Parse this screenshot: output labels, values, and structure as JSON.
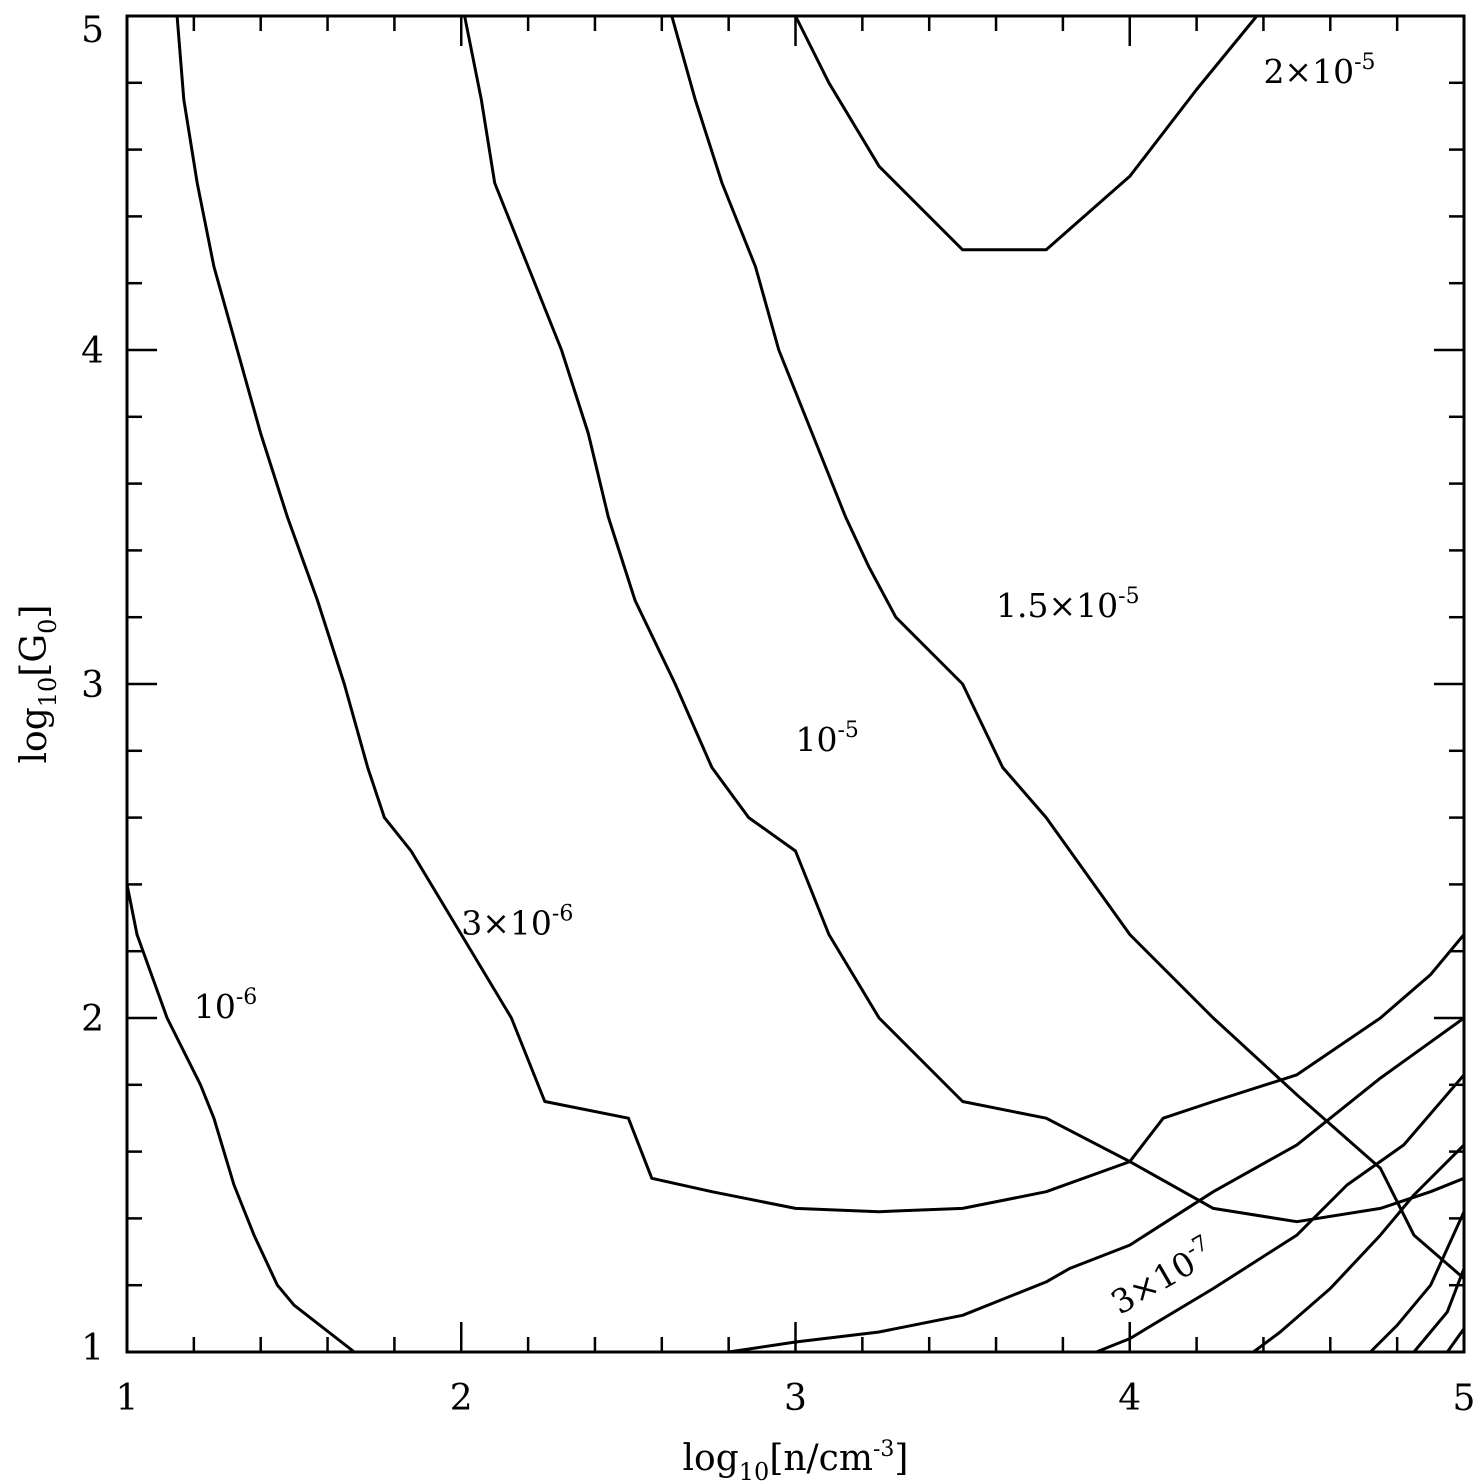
{
  "chart_data": {
    "type": "line",
    "title": "",
    "xlabel": "log10[n/cm-3]",
    "ylabel": "log10[G0]",
    "x_axis_label": {
      "base": "log",
      "sub": "10",
      "bracket_text": "[n/cm",
      "sup": "-3",
      "close": "]"
    },
    "y_axis_label": {
      "base": "log",
      "sub": "10",
      "bracket_text": "[G",
      "bracket_sub": "0",
      "close": "]"
    },
    "xlim": [
      1,
      5
    ],
    "ylim": [
      1,
      5
    ],
    "x_major_ticks": [
      "1",
      "2",
      "3",
      "4",
      "5"
    ],
    "y_major_ticks": [
      "1",
      "2",
      "3",
      "4",
      "5"
    ],
    "minor_tick_step": 0.2,
    "grid": false,
    "legend": "none",
    "line_color": "#000000",
    "series": [
      {
        "name": "10-6",
        "x": [
          1.0,
          1.03,
          1.12,
          1.22,
          1.26,
          1.32,
          1.38,
          1.45,
          1.5,
          1.68
        ],
        "y": [
          2.4,
          2.25,
          2.0,
          1.8,
          1.7,
          1.5,
          1.35,
          1.2,
          1.14,
          1.0
        ]
      },
      {
        "name": "3x10-6",
        "x": [
          1.15,
          1.17,
          1.21,
          1.26,
          1.33,
          1.4,
          1.48,
          1.57,
          1.65,
          1.72,
          1.77,
          1.85,
          2.0,
          2.15,
          2.25,
          2.5,
          2.57,
          2.75,
          3.0,
          3.25,
          3.5,
          3.75,
          4.0,
          4.1,
          4.25,
          4.5,
          4.75,
          4.9,
          5.0
        ],
        "y": [
          5.0,
          4.75,
          4.5,
          4.25,
          4.0,
          3.75,
          3.5,
          3.25,
          3.0,
          2.75,
          2.6,
          2.5,
          2.25,
          2.0,
          1.75,
          1.7,
          1.52,
          1.48,
          1.43,
          1.42,
          1.43,
          1.48,
          1.57,
          1.7,
          1.75,
          1.83,
          2.0,
          2.13,
          2.25
        ]
      },
      {
        "name": "10-5",
        "x": [
          2.01,
          2.06,
          2.1,
          2.2,
          2.3,
          2.38,
          2.44,
          2.52,
          2.64,
          2.75,
          2.86,
          3.0,
          3.1,
          3.25,
          3.5,
          3.75,
          4.0,
          4.25,
          4.5,
          4.75,
          4.9,
          5.0
        ],
        "y": [
          5.0,
          4.75,
          4.5,
          4.25,
          4.0,
          3.75,
          3.5,
          3.25,
          3.0,
          2.75,
          2.6,
          2.5,
          2.25,
          2.0,
          1.75,
          1.7,
          1.57,
          1.43,
          1.39,
          1.43,
          1.48,
          1.52
        ]
      },
      {
        "name": "1.5x10-5",
        "x": [
          2.63,
          2.7,
          2.78,
          2.88,
          2.95,
          3.05,
          3.15,
          3.22,
          3.3,
          3.5,
          3.62,
          3.75,
          4.0,
          4.25,
          4.5,
          4.75,
          4.85,
          5.0
        ],
        "y": [
          5.0,
          4.75,
          4.5,
          4.25,
          4.0,
          3.75,
          3.5,
          3.35,
          3.2,
          3.0,
          2.75,
          2.6,
          2.25,
          2.0,
          1.77,
          1.55,
          1.35,
          1.22
        ]
      },
      {
        "name": "2x10-5",
        "x": [
          3.0,
          3.1,
          3.25,
          3.5,
          3.75,
          4.0,
          4.2,
          4.38
        ],
        "y": [
          5.0,
          4.8,
          4.55,
          4.3,
          4.3,
          4.52,
          4.78,
          5.0
        ]
      },
      {
        "name": "3x10-7",
        "x": [
          2.8,
          3.0,
          3.25,
          3.5,
          3.75,
          3.82,
          4.0,
          4.25,
          4.5,
          4.75,
          5.0
        ],
        "y": [
          1.0,
          1.03,
          1.06,
          1.11,
          1.21,
          1.25,
          1.32,
          1.48,
          1.62,
          1.82,
          2.0
        ]
      },
      {
        "name": "",
        "x": [
          3.9,
          4.0,
          4.25,
          4.5,
          4.65,
          4.82,
          5.0
        ],
        "y": [
          1.0,
          1.04,
          1.19,
          1.35,
          1.5,
          1.62,
          1.83
        ]
      },
      {
        "name": "",
        "x": [
          4.37,
          4.45,
          4.6,
          4.75,
          4.85,
          5.0
        ],
        "y": [
          1.0,
          1.06,
          1.19,
          1.35,
          1.47,
          1.62
        ]
      },
      {
        "name": "",
        "x": [
          4.72,
          4.8,
          4.9,
          5.0
        ],
        "y": [
          1.0,
          1.08,
          1.2,
          1.42
        ]
      },
      {
        "name": "",
        "x": [
          4.85,
          4.95,
          5.0
        ],
        "y": [
          1.0,
          1.12,
          1.25
        ]
      },
      {
        "name": "",
        "x": [
          4.95,
          5.0
        ],
        "y": [
          1.0,
          1.07
        ]
      }
    ],
    "annotations": [
      {
        "text": "10",
        "exp": "-6",
        "x": 1.2,
        "y": 2.0
      },
      {
        "text": "3×10",
        "exp": "-6",
        "x": 2.0,
        "y": 2.25
      },
      {
        "text": "10",
        "exp": "-5",
        "x": 3.0,
        "y": 2.8
      },
      {
        "text": "1.5×10",
        "exp": "-5",
        "x": 3.6,
        "y": 3.2
      },
      {
        "text": "2×10",
        "exp": "-5",
        "x": 4.4,
        "y": 4.8
      },
      {
        "text": "3×10",
        "exp": "-7",
        "x": 3.97,
        "y": 1.11,
        "rotate": -30
      }
    ]
  }
}
